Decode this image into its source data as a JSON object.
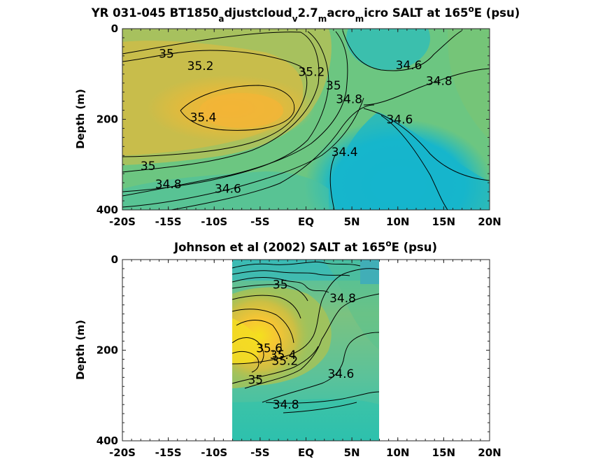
{
  "chart_data": [
    {
      "type": "heatmap",
      "title_parts": [
        {
          "t": "YR 031-045 BT1850",
          "sub": false
        },
        {
          "t": "a",
          "sub": true
        },
        {
          "t": "djustcloud",
          "sub": false
        },
        {
          "t": "v",
          "sub": true
        },
        {
          "t": "2.7",
          "sub": false
        },
        {
          "t": "m",
          "sub": true
        },
        {
          "t": "acro",
          "sub": false
        },
        {
          "t": "m",
          "sub": true
        },
        {
          "t": "icro SALT at 165",
          "sub": false
        },
        {
          "t": "o",
          "sup": true
        },
        {
          "t": "E (psu)",
          "sub": false
        }
      ],
      "ylabel": "Depth (m)",
      "xticks": [
        "-20S",
        "-15S",
        "-10S",
        "-5S",
        "EQ",
        "5N",
        "10N",
        "15N",
        "20N"
      ],
      "xlim": [
        -20,
        20
      ],
      "yticks": [
        "0",
        "200",
        "400"
      ],
      "ylim": [
        0,
        400
      ],
      "y_reversed": true,
      "contour_labels": [
        {
          "text": "35",
          "lat": -15.2,
          "depth": 55
        },
        {
          "text": "35.2",
          "lat": -11.5,
          "depth": 82
        },
        {
          "text": "35.4",
          "lat": -11.2,
          "depth": 195
        },
        {
          "text": "35.2",
          "lat": 0.6,
          "depth": 95
        },
        {
          "text": "35",
          "lat": 3.0,
          "depth": 125
        },
        {
          "text": "34.8",
          "lat": 4.7,
          "depth": 155
        },
        {
          "text": "34.6",
          "lat": 11.2,
          "depth": 80
        },
        {
          "text": "34.8",
          "lat": 14.5,
          "depth": 115
        },
        {
          "text": "34.6",
          "lat": 10.2,
          "depth": 200
        },
        {
          "text": "34.4",
          "lat": 4.2,
          "depth": 272
        },
        {
          "text": "35",
          "lat": -17.2,
          "depth": 303
        },
        {
          "text": "34.8",
          "lat": -15.0,
          "depth": 343
        },
        {
          "text": "34.6",
          "lat": -8.5,
          "depth": 353
        }
      ]
    },
    {
      "type": "heatmap",
      "title_parts": [
        {
          "t": "Johnson et al (2002) SALT at 165",
          "sub": false
        },
        {
          "t": "o",
          "sup": true
        },
        {
          "t": "E (psu)",
          "sub": false
        }
      ],
      "ylabel": "Depth (m)",
      "xticks": [
        "-20S",
        "-15S",
        "-10S",
        "-5S",
        "EQ",
        "5N",
        "10N",
        "15N",
        "20N"
      ],
      "xlim": [
        -20,
        20
      ],
      "yticks": [
        "0",
        "200",
        "400"
      ],
      "ylim": [
        0,
        400
      ],
      "y_reversed": true,
      "data_lat_range": [
        -8,
        8
      ],
      "contour_labels": [
        {
          "text": "35",
          "lat": -2.8,
          "depth": 55
        },
        {
          "text": "34.8",
          "lat": 4.0,
          "depth": 85
        },
        {
          "text": "35.6",
          "lat": -4.0,
          "depth": 195
        },
        {
          "text": "35.4",
          "lat": -2.5,
          "depth": 210
        },
        {
          "text": "35.2",
          "lat": -2.3,
          "depth": 223
        },
        {
          "text": "35",
          "lat": -5.5,
          "depth": 265
        },
        {
          "text": "34.6",
          "lat": 3.8,
          "depth": 252
        },
        {
          "text": "34.8",
          "lat": -2.2,
          "depth": 320
        }
      ]
    }
  ]
}
